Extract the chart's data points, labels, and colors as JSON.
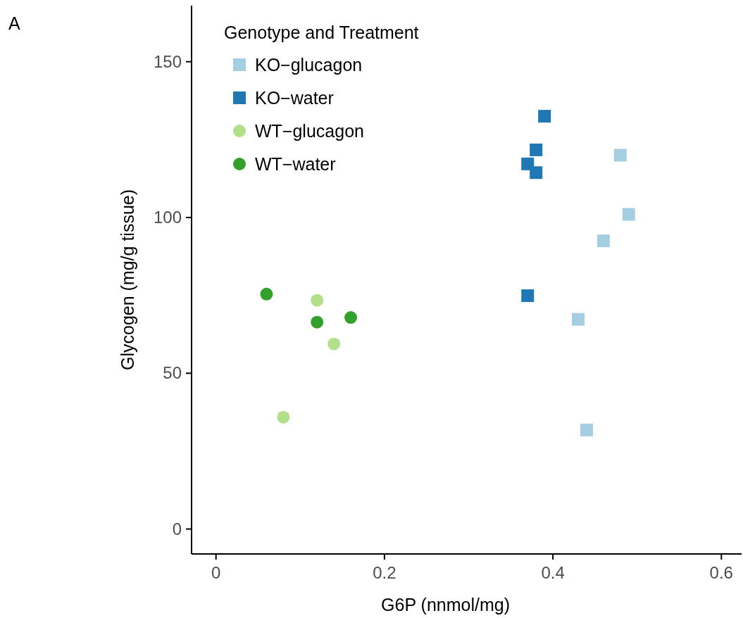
{
  "chart_data": {
    "type": "scatter",
    "xlabel": "G6P (nnmol/mg)",
    "ylabel": "Glycogen (mg/g tissue)",
    "legend_title": "Genotype and Treatment",
    "legend": "top left",
    "grid": false,
    "annotations": [
      "A"
    ],
    "xlim": [
      -0.029,
      0.624
    ],
    "xticks": [
      0,
      0.2,
      0.4,
      0.6
    ],
    "ylim": [
      -8,
      168
    ],
    "yticks": [
      0,
      50,
      100,
      150
    ],
    "series": [
      {
        "name": "KO−glucagon",
        "color": "#a6cee3",
        "marker": "square",
        "x": [
          0.48,
          0.49,
          0.46,
          0.43,
          0.44
        ],
        "values": [
          120,
          101,
          92.5,
          67.3,
          31.8
        ]
      },
      {
        "name": "KO−water",
        "color": "#1f78b4",
        "marker": "square",
        "x": [
          0.39,
          0.38,
          0.37,
          0.38,
          0.37
        ],
        "values": [
          132.5,
          121.7,
          117.2,
          114.4,
          74.9
        ]
      },
      {
        "name": "WT−glucagon",
        "color": "#b2df8a",
        "marker": "circle",
        "x": [
          0.12,
          0.14,
          0.08
        ],
        "values": [
          73.4,
          59.4,
          35.9
        ]
      },
      {
        "name": "WT−water",
        "color": "#33a02c",
        "marker": "circle",
        "x": [
          0.06,
          0.12,
          0.16
        ],
        "values": [
          75.4,
          66.4,
          67.9
        ]
      }
    ]
  }
}
